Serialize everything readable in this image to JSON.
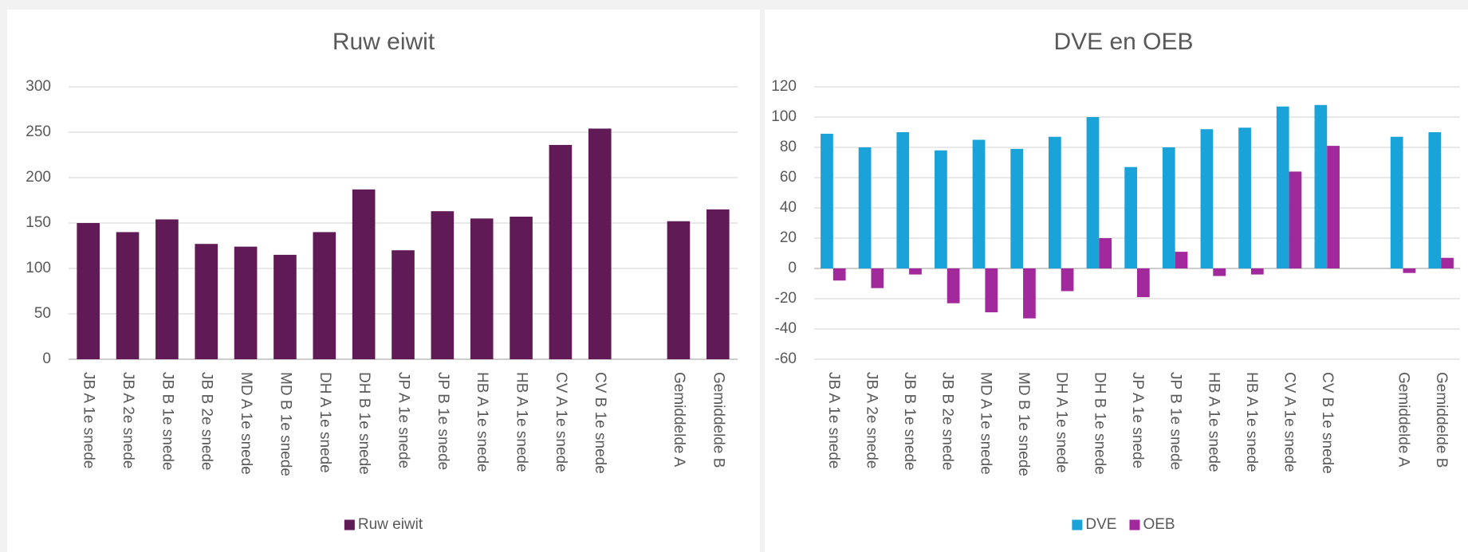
{
  "chart_data": [
    {
      "type": "bar",
      "title": "Ruw eiwit",
      "categories": [
        "JB A 1e snede",
        "JB A 2e snede",
        "JB B 1e snede",
        "JB B 2e snede",
        "MD A 1e snede",
        "MD B 1e snede",
        "DH A 1e snede",
        "DH B 1e snede",
        "JP A 1e snede",
        "JP B 1e snede",
        "HB A 1e snede",
        "HB A 1e snede",
        "CV A 1e snede",
        "CV B 1e snede",
        null,
        "Gemiddelde A",
        "Gemiddelde B"
      ],
      "series": [
        {
          "name": "Ruw eiwit",
          "color": "#601a55",
          "values": [
            150,
            140,
            154,
            127,
            124,
            115,
            140,
            187,
            120,
            163,
            155,
            157,
            236,
            254,
            null,
            152,
            165
          ]
        }
      ],
      "ylim": [
        0,
        300
      ],
      "yticks": [
        0,
        50,
        100,
        150,
        200,
        250,
        300
      ],
      "grid": true,
      "legend": "bottom"
    },
    {
      "type": "bar",
      "title": "DVE en OEB",
      "categories": [
        "JB A 1e snede",
        "JB A 2e snede",
        "JB B 1e snede",
        "JB B 2e snede",
        "MD A 1e snede",
        "MD B 1e snede",
        "DH A 1e snede",
        "DH B 1e snede",
        "JP A 1e snede",
        "JP B 1e snede",
        "HB A 1e snede",
        "HB A 1e snede",
        "CV A 1e snede",
        "CV B 1e snede",
        null,
        "Gemiddelde A",
        "Gemiddelde B"
      ],
      "series": [
        {
          "name": "DVE",
          "color": "#1aa3d9",
          "values": [
            89,
            80,
            90,
            78,
            85,
            79,
            87,
            100,
            67,
            80,
            92,
            93,
            107,
            108,
            null,
            87,
            90
          ]
        },
        {
          "name": "OEB",
          "color": "#a2299b",
          "values": [
            -8,
            -13,
            -4,
            -23,
            -29,
            -33,
            -15,
            20,
            -19,
            11,
            -5,
            -4,
            64,
            81,
            null,
            -3,
            7
          ]
        }
      ],
      "ylim": [
        -60,
        120
      ],
      "yticks": [
        -60,
        -40,
        -20,
        0,
        20,
        40,
        60,
        80,
        100,
        120
      ],
      "grid": true,
      "legend": "bottom"
    }
  ]
}
